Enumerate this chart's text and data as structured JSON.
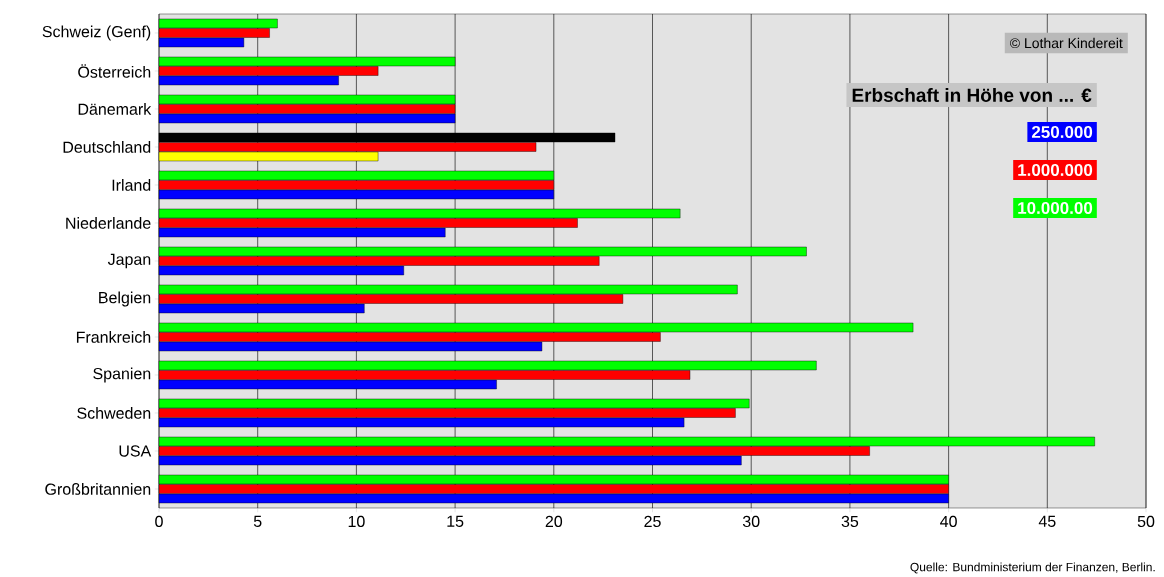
{
  "chart_data": {
    "type": "bar",
    "orientation": "horizontal",
    "categories": [
      "Schweiz (Genf)",
      "Österreich",
      "Dänemark",
      "Deutschland",
      "Irland",
      "Niederlande",
      "Japan",
      "Belgien",
      "Frankreich",
      "Spanien",
      "Schweden",
      "USA",
      "Großbritannien"
    ],
    "legend_title": "Erbschaft in Höhe von ... €",
    "series": [
      {
        "name": "250.000",
        "color": "#0000ff",
        "colors": [
          "#0000ff",
          "#0000ff",
          "#0000ff",
          "#ffff00",
          "#0000ff",
          "#0000ff",
          "#0000ff",
          "#0000ff",
          "#0000ff",
          "#0000ff",
          "#0000ff",
          "#0000ff",
          "#0000ff"
        ],
        "values": [
          4.3,
          9.1,
          15.0,
          11.1,
          20.0,
          14.5,
          12.4,
          10.4,
          19.4,
          17.1,
          26.6,
          29.5,
          40.0
        ]
      },
      {
        "name": "1.000.000",
        "color": "#ff0000",
        "values": [
          5.6,
          11.1,
          15.0,
          19.1,
          20.0,
          21.2,
          22.3,
          23.5,
          25.4,
          26.9,
          29.2,
          36.0,
          40.0
        ]
      },
      {
        "name": "10.000.00",
        "color": "#00ff00",
        "colors": [
          "#00ff00",
          "#00ff00",
          "#00ff00",
          "#000000",
          "#00ff00",
          "#00ff00",
          "#00ff00",
          "#00ff00",
          "#00ff00",
          "#00ff00",
          "#00ff00",
          "#00ff00",
          "#00ff00"
        ],
        "values": [
          6.0,
          15.0,
          15.0,
          23.1,
          20.0,
          26.4,
          32.8,
          29.3,
          38.2,
          33.3,
          29.9,
          47.4,
          40.0
        ]
      }
    ],
    "xlim": [
      0,
      50
    ],
    "xticks": [
      0,
      5,
      10,
      15,
      20,
      25,
      30,
      35,
      40,
      45,
      50
    ],
    "grid": "x",
    "legend": "top right",
    "annotations": [
      "© Lothar Kindereit",
      "Quelle: Bundministerium der Finanzen, Berlin."
    ]
  }
}
